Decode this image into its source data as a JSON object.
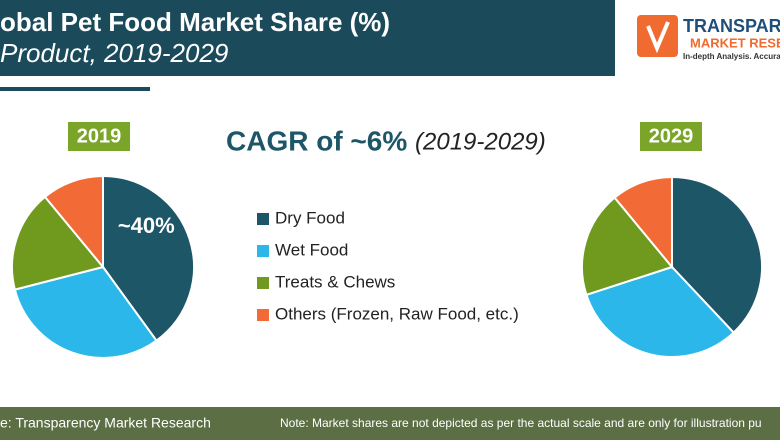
{
  "header": {
    "title": "obal Pet Food Market Share (%)",
    "subtitle": "Product, 2019-2029"
  },
  "logo": {
    "name": "TRANSPARE",
    "sub": "MARKET RESEARCH",
    "tagline": "In-depth Analysis. Accurate"
  },
  "cagr": {
    "text": "CAGR of ~6%",
    "period": "(2019-2029)"
  },
  "footer": {
    "source": "e: Transparency Market Research",
    "note": "Note: Market shares are not depicted as per the actual scale and are only for illustration pu"
  },
  "chart_data": [
    {
      "type": "pie",
      "title": "2019",
      "categories": [
        "Dry Food",
        "Wet Food",
        "Treats & Chews",
        "Others (Frozen, Raw Food, etc.)"
      ],
      "values": [
        40,
        31,
        18,
        11
      ],
      "value_labels": [
        "~40%",
        null,
        null,
        null
      ],
      "colors": [
        "#1d5667",
        "#2bb7ea",
        "#6f9a1e",
        "#f26a36"
      ],
      "legend": "center"
    },
    {
      "type": "pie",
      "title": "2029",
      "categories": [
        "Dry Food",
        "Wet Food",
        "Treats & Chews",
        "Others (Frozen, Raw Food, etc.)"
      ],
      "values": [
        38,
        32,
        19,
        11
      ],
      "colors": [
        "#1d5667",
        "#2bb7ea",
        "#6f9a1e",
        "#f26a36"
      ]
    }
  ]
}
